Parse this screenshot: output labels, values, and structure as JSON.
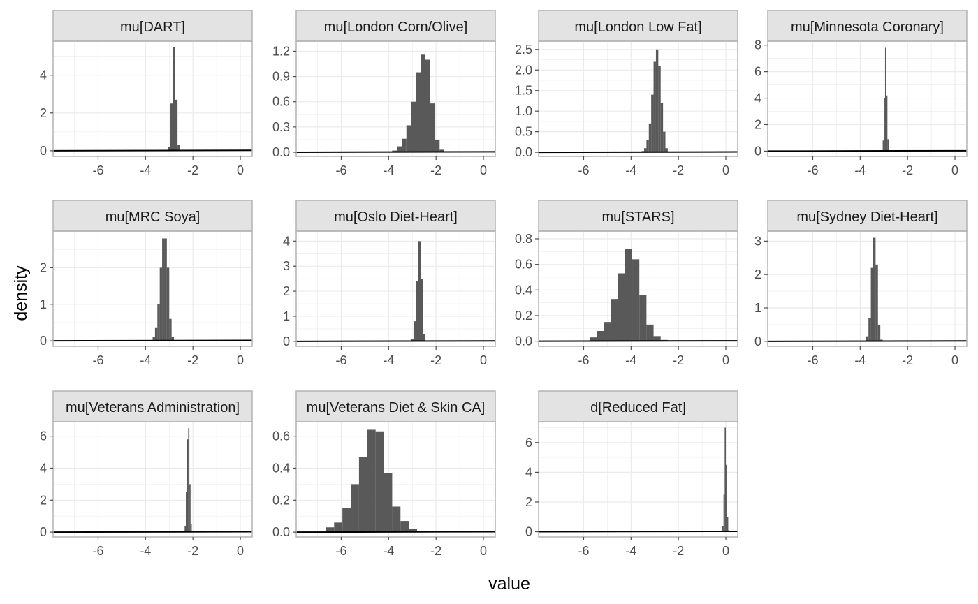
{
  "chart_data": {
    "type": "histogram",
    "xlabel": "value",
    "ylabel": "density",
    "xlim": [
      -7.9,
      0.5
    ],
    "x_ticks": [
      -6,
      -4,
      -2,
      0
    ],
    "grid": true,
    "bar_color": "#595959",
    "panels": [
      {
        "title": "mu[DART]",
        "ylim": [
          -0.3,
          5.8
        ],
        "y_ticks": [
          0,
          2,
          4
        ],
        "tick_labels": [
          "0",
          "2",
          "4"
        ],
        "bins": [
          [
            -3.05,
            -2.95,
            0.2
          ],
          [
            -2.95,
            -2.85,
            2.5
          ],
          [
            -2.85,
            -2.75,
            5.5
          ],
          [
            -2.75,
            -2.65,
            2.7
          ],
          [
            -2.65,
            -2.55,
            0.3
          ]
        ]
      },
      {
        "title": "mu[London Corn/Olive]",
        "ylim": [
          -0.05,
          1.32
        ],
        "y_ticks": [
          0,
          0.3,
          0.6,
          0.9,
          1.2
        ],
        "tick_labels": [
          "0.0",
          "0.3",
          "0.6",
          "0.9",
          "1.2"
        ],
        "bins": [
          [
            -3.85,
            -3.65,
            0.02
          ],
          [
            -3.65,
            -3.45,
            0.07
          ],
          [
            -3.45,
            -3.25,
            0.16
          ],
          [
            -3.25,
            -3.05,
            0.32
          ],
          [
            -3.05,
            -2.85,
            0.6
          ],
          [
            -2.85,
            -2.65,
            0.95
          ],
          [
            -2.65,
            -2.45,
            1.16
          ],
          [
            -2.45,
            -2.25,
            1.1
          ],
          [
            -2.25,
            -2.05,
            0.58
          ],
          [
            -2.05,
            -1.85,
            0.15
          ],
          [
            -1.85,
            -1.65,
            0.03
          ]
        ]
      },
      {
        "title": "mu[London Low Fat]",
        "ylim": [
          -0.1,
          2.7
        ],
        "y_ticks": [
          0,
          0.5,
          1.0,
          1.5,
          2.0,
          2.5
        ],
        "tick_labels": [
          "0.0",
          "0.5",
          "1.0",
          "1.5",
          "2.0",
          "2.5"
        ],
        "bins": [
          [
            -3.55,
            -3.45,
            0.03
          ],
          [
            -3.45,
            -3.35,
            0.1
          ],
          [
            -3.35,
            -3.25,
            0.3
          ],
          [
            -3.25,
            -3.15,
            0.7
          ],
          [
            -3.15,
            -3.05,
            1.4
          ],
          [
            -3.05,
            -2.95,
            2.2
          ],
          [
            -2.95,
            -2.85,
            2.5
          ],
          [
            -2.85,
            -2.75,
            2.1
          ],
          [
            -2.75,
            -2.65,
            1.2
          ],
          [
            -2.65,
            -2.55,
            0.5
          ],
          [
            -2.55,
            -2.45,
            0.1
          ]
        ]
      },
      {
        "title": "mu[Minnesota Coronary]",
        "ylim": [
          -0.4,
          8.3
        ],
        "y_ticks": [
          0,
          2,
          4,
          6,
          8
        ],
        "tick_labels": [
          "0",
          "2",
          "4",
          "6",
          "8"
        ],
        "bins": [
          [
            -3.05,
            -3.0,
            0.8
          ],
          [
            -3.0,
            -2.95,
            4.0
          ],
          [
            -2.95,
            -2.9,
            7.8
          ],
          [
            -2.9,
            -2.85,
            4.2
          ],
          [
            -2.85,
            -2.8,
            0.9
          ]
        ]
      },
      {
        "title": "mu[MRC Soya]",
        "ylim": [
          -0.15,
          3.0
        ],
        "y_ticks": [
          0,
          1,
          2
        ],
        "tick_labels": [
          "0",
          "1",
          "2"
        ],
        "bins": [
          [
            -3.7,
            -3.6,
            0.1
          ],
          [
            -3.6,
            -3.5,
            0.35
          ],
          [
            -3.5,
            -3.4,
            1.0
          ],
          [
            -3.4,
            -3.3,
            2.0
          ],
          [
            -3.3,
            -3.2,
            2.8
          ],
          [
            -3.2,
            -3.1,
            2.8
          ],
          [
            -3.1,
            -3.0,
            2.0
          ],
          [
            -3.0,
            -2.9,
            0.6
          ],
          [
            -2.9,
            -2.8,
            0.1
          ]
        ]
      },
      {
        "title": "mu[Oslo Diet-Heart]",
        "ylim": [
          -0.2,
          4.4
        ],
        "y_ticks": [
          0,
          1,
          2,
          3,
          4
        ],
        "tick_labels": [
          "0",
          "1",
          "2",
          "3",
          "4"
        ],
        "bins": [
          [
            -3.05,
            -2.95,
            0.1
          ],
          [
            -2.95,
            -2.85,
            0.8
          ],
          [
            -2.85,
            -2.75,
            2.4
          ],
          [
            -2.75,
            -2.65,
            4.0
          ],
          [
            -2.65,
            -2.55,
            2.5
          ],
          [
            -2.55,
            -2.45,
            0.3
          ]
        ]
      },
      {
        "title": "mu[STARS]",
        "ylim": [
          -0.04,
          0.86
        ],
        "y_ticks": [
          0,
          0.2,
          0.4,
          0.6,
          0.8
        ],
        "tick_labels": [
          "0.0",
          "0.2",
          "0.4",
          "0.6",
          "0.8"
        ],
        "bins": [
          [
            -5.75,
            -5.45,
            0.03
          ],
          [
            -5.45,
            -5.15,
            0.08
          ],
          [
            -5.15,
            -4.85,
            0.15
          ],
          [
            -4.85,
            -4.55,
            0.33
          ],
          [
            -4.55,
            -4.25,
            0.53
          ],
          [
            -4.25,
            -3.95,
            0.72
          ],
          [
            -3.95,
            -3.65,
            0.64
          ],
          [
            -3.65,
            -3.35,
            0.36
          ],
          [
            -3.35,
            -3.05,
            0.13
          ],
          [
            -3.05,
            -2.75,
            0.04
          ],
          [
            -2.75,
            -2.45,
            0.01
          ]
        ]
      },
      {
        "title": "mu[Sydney Diet-Heart]",
        "ylim": [
          -0.15,
          3.3
        ],
        "y_ticks": [
          0,
          1,
          2,
          3
        ],
        "tick_labels": [
          "0",
          "1",
          "2",
          "3"
        ],
        "bins": [
          [
            -3.75,
            -3.65,
            0.15
          ],
          [
            -3.65,
            -3.55,
            0.7
          ],
          [
            -3.55,
            -3.45,
            2.2
          ],
          [
            -3.45,
            -3.35,
            3.1
          ],
          [
            -3.35,
            -3.25,
            2.3
          ],
          [
            -3.25,
            -3.15,
            0.5
          ],
          [
            -3.15,
            -3.05,
            0.05
          ]
        ]
      },
      {
        "title": "mu[Veterans Administration]",
        "ylim": [
          -0.3,
          6.9
        ],
        "y_ticks": [
          0,
          2,
          4,
          6
        ],
        "tick_labels": [
          "0",
          "2",
          "4",
          "6"
        ],
        "bins": [
          [
            -2.35,
            -2.3,
            0.4
          ],
          [
            -2.3,
            -2.25,
            2.5
          ],
          [
            -2.25,
            -2.2,
            5.8
          ],
          [
            -2.2,
            -2.15,
            6.5
          ],
          [
            -2.15,
            -2.1,
            3.0
          ],
          [
            -2.1,
            -2.05,
            0.5
          ]
        ]
      },
      {
        "title": "mu[Veterans Diet & Skin CA]",
        "ylim": [
          -0.03,
          0.69
        ],
        "y_ticks": [
          0,
          0.2,
          0.4,
          0.6
        ],
        "tick_labels": [
          "0.0",
          "0.2",
          "0.4",
          "0.6"
        ],
        "bins": [
          [
            -6.65,
            -6.3,
            0.03
          ],
          [
            -6.3,
            -5.95,
            0.06
          ],
          [
            -5.95,
            -5.6,
            0.15
          ],
          [
            -5.6,
            -5.25,
            0.3
          ],
          [
            -5.25,
            -4.9,
            0.47
          ],
          [
            -4.9,
            -4.55,
            0.64
          ],
          [
            -4.55,
            -4.2,
            0.63
          ],
          [
            -4.2,
            -3.85,
            0.37
          ],
          [
            -3.85,
            -3.5,
            0.16
          ],
          [
            -3.5,
            -3.15,
            0.07
          ],
          [
            -3.15,
            -2.8,
            0.02
          ]
        ]
      },
      {
        "title": "d[Reduced Fat]",
        "ylim": [
          -0.35,
          7.4
        ],
        "y_ticks": [
          0,
          2,
          4,
          6
        ],
        "tick_labels": [
          "0",
          "2",
          "4",
          "6"
        ],
        "bins": [
          [
            -0.15,
            -0.1,
            0.4
          ],
          [
            -0.1,
            -0.05,
            2.5
          ],
          [
            -0.05,
            0.0,
            7.0
          ],
          [
            0.0,
            0.05,
            4.5
          ],
          [
            0.05,
            0.1,
            1.0
          ],
          [
            0.1,
            0.15,
            0.1
          ]
        ]
      }
    ]
  }
}
